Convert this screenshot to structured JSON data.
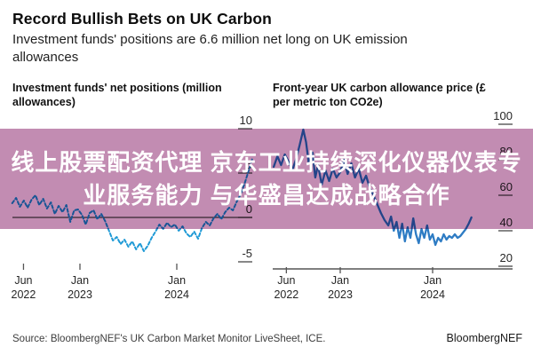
{
  "header": {
    "title": "Record Bullish Bets on UK Carbon",
    "subtitle": "Investment funds' positions are 6.6 million net long on UK emission allowances"
  },
  "banner": {
    "lines": [
      "线上股票配资代理 京东工业持续深化仪器仪表专",
      "业服务能力 与华盛昌达成战略合作"
    ],
    "bg_color": "#c28cb2",
    "text_color": "#ffffff"
  },
  "footer": {
    "source": "Source: BloombergNEF's UK Carbon Market Monitor LiveSheet, ICE.",
    "brand": "BloombergNEF"
  },
  "chart_data": [
    {
      "type": "line",
      "title": "Investment funds' net positions (million allowances)",
      "line_color": "#1f9ad6",
      "line_style": "dashed",
      "zero_line": true,
      "bottom_axis": false,
      "ylim": [
        -5,
        10
      ],
      "y_ticks": [
        {
          "label": "10",
          "value": 10
        },
        {
          "label": "5",
          "value": 5
        },
        {
          "label": "0",
          "value": 0
        },
        {
          "label": "-5",
          "value": -5
        }
      ],
      "x_ticks": [
        {
          "line1": "Jun",
          "line2": "2022",
          "year": 2022.417
        },
        {
          "line1": "Jan",
          "line2": "2023",
          "year": 2023.0
        },
        {
          "line1": "Jan",
          "line2": "2024",
          "year": 2024.0
        }
      ],
      "series": [
        [
          2022.3,
          1.6
        ],
        [
          2022.34,
          2.2
        ],
        [
          2022.38,
          1.2
        ],
        [
          2022.42,
          1.9
        ],
        [
          2022.46,
          1.1
        ],
        [
          2022.5,
          2.0
        ],
        [
          2022.54,
          2.5
        ],
        [
          2022.58,
          1.4
        ],
        [
          2022.62,
          2.1
        ],
        [
          2022.66,
          1.0
        ],
        [
          2022.7,
          1.7
        ],
        [
          2022.74,
          0.4
        ],
        [
          2022.78,
          1.3
        ],
        [
          2022.82,
          0.6
        ],
        [
          2022.86,
          1.4
        ],
        [
          2022.9,
          -0.5
        ],
        [
          2022.94,
          0.8
        ],
        [
          2022.98,
          0.9
        ],
        [
          2023.02,
          0.3
        ],
        [
          2023.06,
          -0.8
        ],
        [
          2023.1,
          0.5
        ],
        [
          2023.14,
          0.8
        ],
        [
          2023.18,
          -0.2
        ],
        [
          2023.22,
          0.4
        ],
        [
          2023.26,
          -0.4
        ],
        [
          2023.3,
          -1.5
        ],
        [
          2023.34,
          -2.6
        ],
        [
          2023.38,
          -2.2
        ],
        [
          2023.42,
          -3.0
        ],
        [
          2023.46,
          -2.5
        ],
        [
          2023.5,
          -3.3
        ],
        [
          2023.54,
          -2.7
        ],
        [
          2023.58,
          -3.6
        ],
        [
          2023.62,
          -2.9
        ],
        [
          2023.66,
          -3.8
        ],
        [
          2023.7,
          -3.2
        ],
        [
          2023.74,
          -2.3
        ],
        [
          2023.78,
          -1.6
        ],
        [
          2023.82,
          -0.8
        ],
        [
          2023.86,
          -1.3
        ],
        [
          2023.9,
          -0.6
        ],
        [
          2023.94,
          -1.1
        ],
        [
          2023.98,
          -0.8
        ],
        [
          2024.02,
          -1.5
        ],
        [
          2024.06,
          -1.0
        ],
        [
          2024.1,
          -1.8
        ],
        [
          2024.14,
          -2.2
        ],
        [
          2024.18,
          -1.6
        ],
        [
          2024.22,
          -2.4
        ],
        [
          2024.26,
          -1.2
        ],
        [
          2024.3,
          -0.5
        ],
        [
          2024.34,
          -0.9
        ],
        [
          2024.38,
          -0.1
        ],
        [
          2024.42,
          0.4
        ],
        [
          2024.46,
          -0.2
        ],
        [
          2024.5,
          0.6
        ],
        [
          2024.54,
          1.1
        ],
        [
          2024.58,
          0.8
        ],
        [
          2024.62,
          1.8
        ],
        [
          2024.66,
          2.6
        ],
        [
          2024.7,
          3.8
        ],
        [
          2024.74,
          5.2
        ],
        [
          2024.78,
          6.6
        ]
      ]
    },
    {
      "type": "line",
      "title": "Front-year UK carbon allowance price (£ per metric ton CO2e)",
      "line_color": "#2e7cc4",
      "line_style": "solid",
      "zero_line": false,
      "bottom_axis": true,
      "ylim": [
        20,
        100
      ],
      "y_ticks": [
        {
          "label": "100",
          "value": 100
        },
        {
          "label": "80",
          "value": 80
        },
        {
          "label": "60",
          "value": 60
        },
        {
          "label": "40",
          "value": 40
        },
        {
          "label": "20",
          "value": 20
        }
      ],
      "x_ticks": [
        {
          "line1": "Jun",
          "line2": "2022",
          "year": 2022.417
        },
        {
          "line1": "Jan",
          "line2": "2023",
          "year": 2023.0
        },
        {
          "line1": "Jan",
          "line2": "2024",
          "year": 2024.0
        }
      ],
      "series": [
        [
          2022.28,
          76
        ],
        [
          2022.32,
          82
        ],
        [
          2022.36,
          77
        ],
        [
          2022.4,
          83
        ],
        [
          2022.44,
          79
        ],
        [
          2022.48,
          74
        ],
        [
          2022.52,
          80
        ],
        [
          2022.56,
          88
        ],
        [
          2022.6,
          97
        ],
        [
          2022.63,
          90
        ],
        [
          2022.66,
          78
        ],
        [
          2022.7,
          84
        ],
        [
          2022.73,
          70
        ],
        [
          2022.76,
          77
        ],
        [
          2022.8,
          66
        ],
        [
          2022.84,
          74
        ],
        [
          2022.88,
          68
        ],
        [
          2022.92,
          75
        ],
        [
          2022.96,
          70
        ],
        [
          2023.0,
          73
        ],
        [
          2023.04,
          80
        ],
        [
          2023.08,
          72
        ],
        [
          2023.12,
          78
        ],
        [
          2023.16,
          70
        ],
        [
          2023.2,
          75
        ],
        [
          2023.24,
          67
        ],
        [
          2023.28,
          71
        ],
        [
          2023.32,
          64
        ],
        [
          2023.36,
          60
        ],
        [
          2023.4,
          55
        ],
        [
          2023.44,
          50
        ],
        [
          2023.48,
          46
        ],
        [
          2023.52,
          43
        ],
        [
          2023.55,
          48
        ],
        [
          2023.58,
          40
        ],
        [
          2023.61,
          45
        ],
        [
          2023.64,
          36
        ],
        [
          2023.67,
          44
        ],
        [
          2023.7,
          34
        ],
        [
          2023.73,
          42
        ],
        [
          2023.76,
          36
        ],
        [
          2023.79,
          47
        ],
        [
          2023.82,
          38
        ],
        [
          2023.85,
          33
        ],
        [
          2023.88,
          41
        ],
        [
          2023.91,
          36
        ],
        [
          2023.94,
          43
        ],
        [
          2023.97,
          35
        ],
        [
          2024.0,
          38
        ],
        [
          2024.03,
          32
        ],
        [
          2024.06,
          36
        ],
        [
          2024.09,
          34
        ],
        [
          2024.12,
          38
        ],
        [
          2024.15,
          35
        ],
        [
          2024.18,
          37
        ],
        [
          2024.21,
          36
        ],
        [
          2024.24,
          38
        ],
        [
          2024.27,
          36
        ],
        [
          2024.3,
          37
        ],
        [
          2024.33,
          39
        ],
        [
          2024.36,
          41
        ],
        [
          2024.39,
          44
        ],
        [
          2024.42,
          47.5
        ]
      ]
    }
  ]
}
